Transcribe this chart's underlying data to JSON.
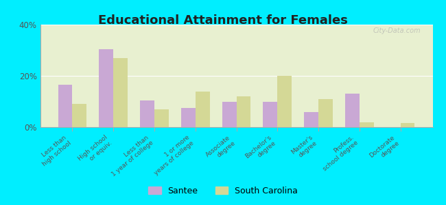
{
  "title": "Educational Attainment for Females",
  "categories": [
    "Less than\nhigh school",
    "High school\nor equiv.",
    "Less than\n1 year of college",
    "1 or more\nyears of college",
    "Associate\ndegree",
    "Bachelor's\ndegree",
    "Master's\ndegree",
    "Profess.\nschool degree",
    "Doctorate\ndegree"
  ],
  "santee": [
    16.5,
    30.5,
    10.5,
    7.5,
    10.0,
    10.0,
    6.0,
    13.0,
    0.0
  ],
  "south_carolina": [
    9.0,
    27.0,
    7.0,
    14.0,
    12.0,
    20.0,
    11.0,
    2.0,
    1.5
  ],
  "santee_color": "#c9a8d4",
  "sc_color": "#d4d896",
  "background_color": "#e8f0d0",
  "outer_background": "#00eeff",
  "ylim": [
    0,
    40
  ],
  "yticks": [
    0,
    20,
    40
  ],
  "ytick_labels": [
    "0%",
    "20%",
    "40%"
  ],
  "watermark": "City-Data.com",
  "legend_labels": [
    "Santee",
    "South Carolina"
  ]
}
